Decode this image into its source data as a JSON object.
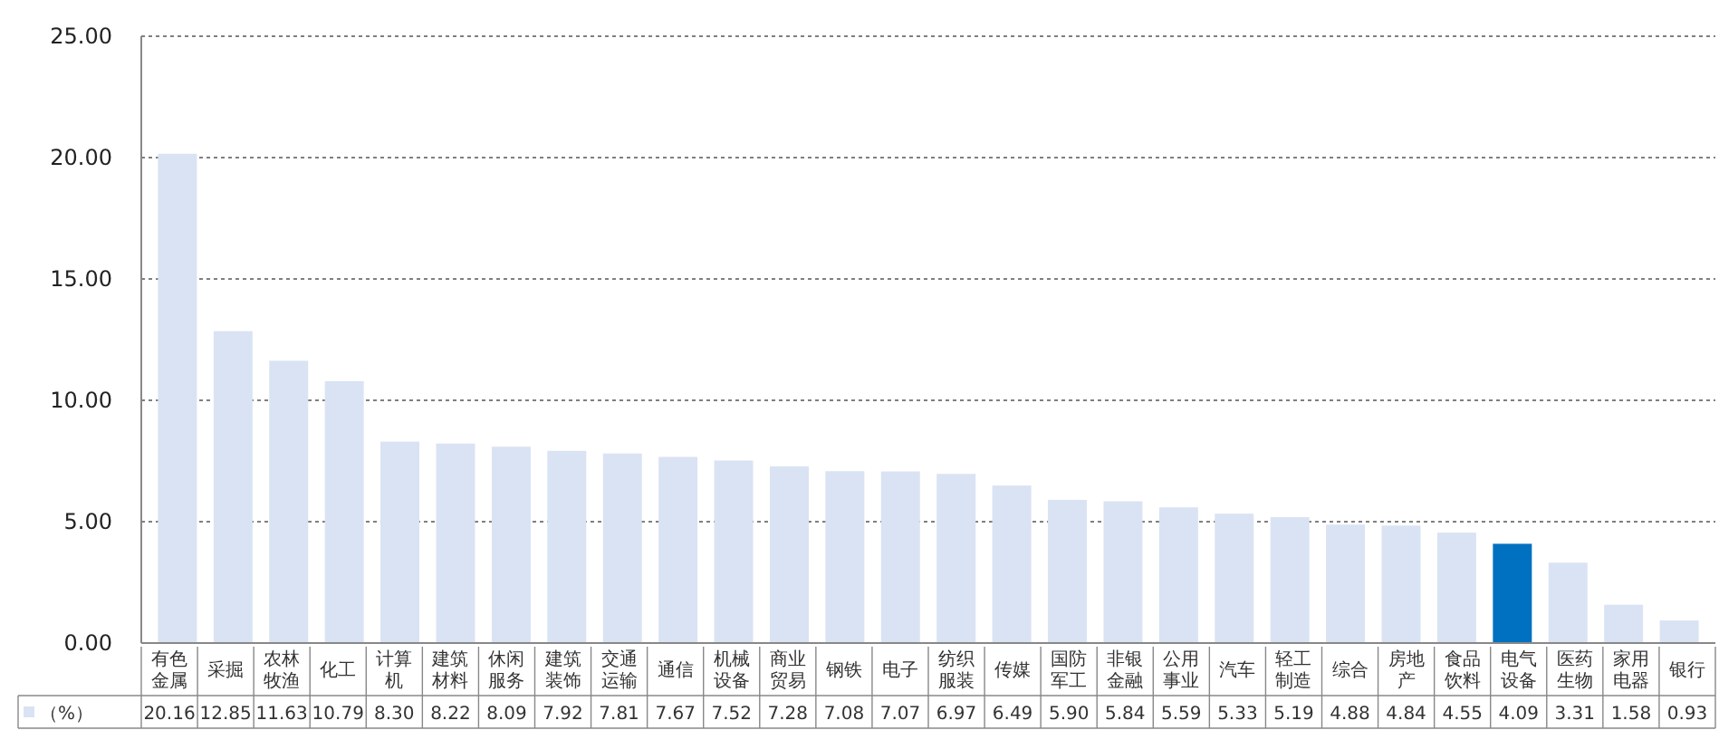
{
  "chart_data": {
    "type": "bar",
    "categories": [
      "有色金属",
      "采掘",
      "农林牧渔",
      "化工",
      "计算机",
      "建筑材料",
      "休闲服务",
      "建筑装饰",
      "交通运输",
      "通信",
      "机械设备",
      "商业贸易",
      "钢铁",
      "电子",
      "纺织服装",
      "传媒",
      "国防军工",
      "非银金融",
      "公用事业",
      "汽车",
      "轻工制造",
      "综合",
      "房地产",
      "食品饮料",
      "电气设备",
      "医药生物",
      "家用电器",
      "银行"
    ],
    "series": [
      {
        "name": "（%）",
        "color": "#dae3f3",
        "colors": [
          "#dae3f3",
          "#dae3f3",
          "#dae3f3",
          "#dae3f3",
          "#dae3f3",
          "#dae3f3",
          "#dae3f3",
          "#dae3f3",
          "#dae3f3",
          "#dae3f3",
          "#dae3f3",
          "#dae3f3",
          "#dae3f3",
          "#dae3f3",
          "#dae3f3",
          "#dae3f3",
          "#dae3f3",
          "#dae3f3",
          "#dae3f3",
          "#dae3f3",
          "#dae3f3",
          "#dae3f3",
          "#dae3f3",
          "#dae3f3",
          "#0070c0",
          "#dae3f3",
          "#dae3f3",
          "#dae3f3"
        ],
        "values": [
          20.16,
          12.85,
          11.63,
          10.79,
          8.3,
          8.22,
          8.09,
          7.92,
          7.81,
          7.67,
          7.52,
          7.28,
          7.08,
          7.07,
          6.97,
          6.49,
          5.9,
          5.84,
          5.59,
          5.33,
          5.19,
          4.88,
          4.84,
          4.55,
          4.09,
          3.31,
          1.58,
          0.93
        ],
        "value_labels": [
          "20.16",
          "12.85",
          "11.63",
          "10.79",
          "8.30",
          "8.22",
          "8.09",
          "7.92",
          "7.81",
          "7.67",
          "7.52",
          "7.28",
          "7.08",
          "7.07",
          "6.97",
          "6.49",
          "5.90",
          "5.84",
          "5.59",
          "5.33",
          "5.19",
          "4.88",
          "4.84",
          "4.55",
          "4.09",
          "3.31",
          "1.58",
          "0.93"
        ]
      }
    ],
    "ylim": [
      0,
      25
    ],
    "yticks": [
      {
        "value": 0,
        "label": "0.00"
      },
      {
        "value": 5,
        "label": "5.00"
      },
      {
        "value": 10,
        "label": "10.00"
      },
      {
        "value": 15,
        "label": "15.00"
      },
      {
        "value": 20,
        "label": "20.00"
      },
      {
        "value": 25,
        "label": "25.00"
      }
    ],
    "grid": "y"
  }
}
